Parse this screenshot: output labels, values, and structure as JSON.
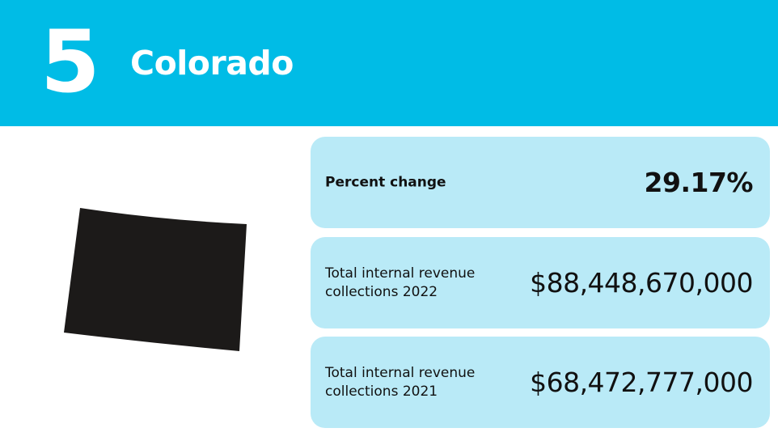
{
  "header": {
    "rank": "5",
    "state": "Colorado",
    "background_color": "#00bce6",
    "text_color": "#ffffff"
  },
  "map": {
    "icon": "colorado-state-outline-icon",
    "fill_color": "#1c1a19"
  },
  "stats": {
    "card_color": "#b9eaf7",
    "percent_change": {
      "label": "Percent change",
      "value": "29.17%"
    },
    "collections_2022": {
      "label_line1": "Total internal revenue",
      "label_line2": "collections 2022",
      "value": "$88,448,670,000"
    },
    "collections_2021": {
      "label_line1": "Total internal revenue",
      "label_line2": "collections 2021",
      "value": "$68,472,777,000"
    }
  }
}
